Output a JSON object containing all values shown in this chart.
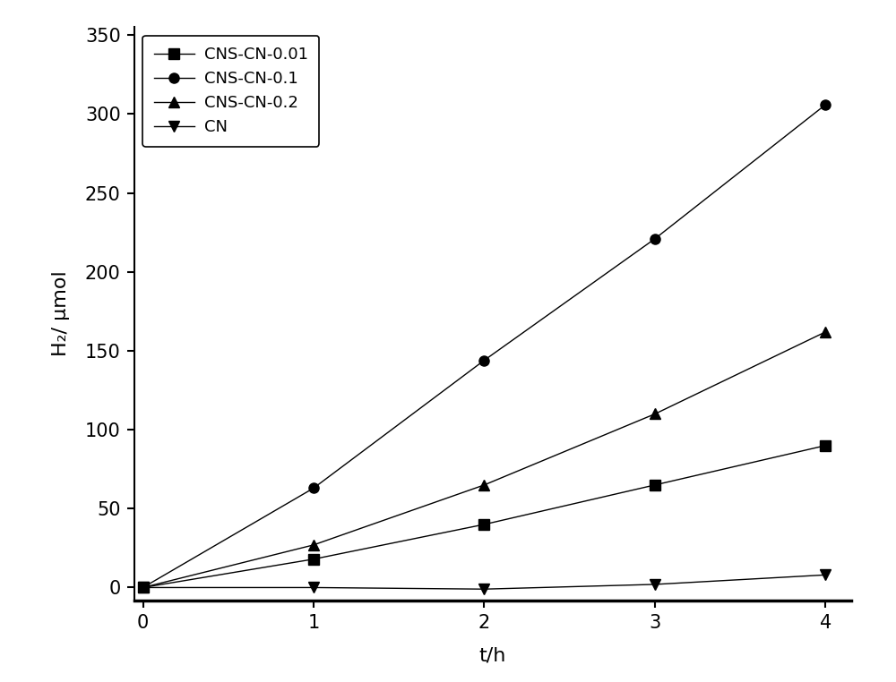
{
  "series": [
    {
      "label": "CNS-CN-0.01",
      "x": [
        0,
        1,
        2,
        3,
        4
      ],
      "y": [
        0,
        18,
        40,
        65,
        90
      ],
      "marker": "s",
      "color": "#000000",
      "linewidth": 1.0,
      "markersize": 8
    },
    {
      "label": "CNS-CN-0.1",
      "x": [
        0,
        1,
        2,
        3,
        4
      ],
      "y": [
        0,
        63,
        144,
        221,
        306
      ],
      "marker": "o",
      "color": "#000000",
      "linewidth": 1.0,
      "markersize": 8
    },
    {
      "label": "CNS-CN-0.2",
      "x": [
        0,
        1,
        2,
        3,
        4
      ],
      "y": [
        0,
        27,
        65,
        110,
        162
      ],
      "marker": "^",
      "color": "#000000",
      "linewidth": 1.0,
      "markersize": 8
    },
    {
      "label": "CN",
      "x": [
        0,
        1,
        2,
        3,
        4
      ],
      "y": [
        0,
        0,
        -1,
        2,
        8
      ],
      "marker": "v",
      "color": "#000000",
      "linewidth": 1.0,
      "markersize": 8
    }
  ],
  "xlabel": "t/h",
  "ylabel": "H₂/ μmol",
  "xlim": [
    -0.05,
    4.15
  ],
  "ylim": [
    -8,
    355
  ],
  "yticks": [
    0,
    50,
    100,
    150,
    200,
    250,
    300,
    350
  ],
  "xticks": [
    0,
    1,
    2,
    3,
    4
  ],
  "legend_loc": "upper left",
  "xlabel_fontsize": 16,
  "ylabel_fontsize": 16,
  "tick_fontsize": 15,
  "legend_fontsize": 13,
  "background_color": "#ffffff",
  "figure_width": 10.0,
  "figure_height": 7.62
}
